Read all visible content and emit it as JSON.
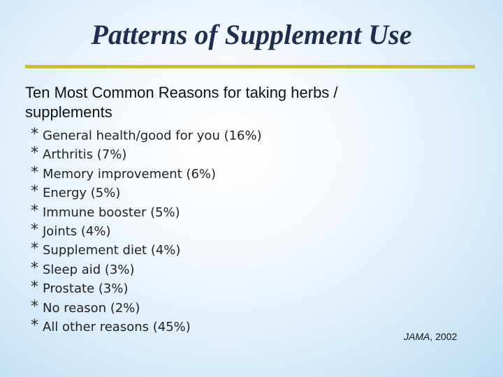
{
  "slide": {
    "title": "Patterns of Supplement Use",
    "subtitle": "Ten Most Common Reasons for taking herbs / supplements",
    "bullet_glyph": "*",
    "reasons": [
      "General health/good for you (16%)",
      "Arthritis (7%)",
      "Memory improvement (6%)",
      "Energy (5%)",
      "Immune booster (5%)",
      "Joints (4%)",
      "Supplement diet (4%)",
      "Sleep aid (3%)",
      "Prostate (3%)",
      "No reason (2%)",
      "All other reasons (45%)"
    ],
    "citation": {
      "source": "JAMA",
      "year": ", 2002"
    },
    "colors": {
      "title": "#1f2e4f",
      "rule": "#c8c41d",
      "background": "#d6eaf9"
    }
  }
}
